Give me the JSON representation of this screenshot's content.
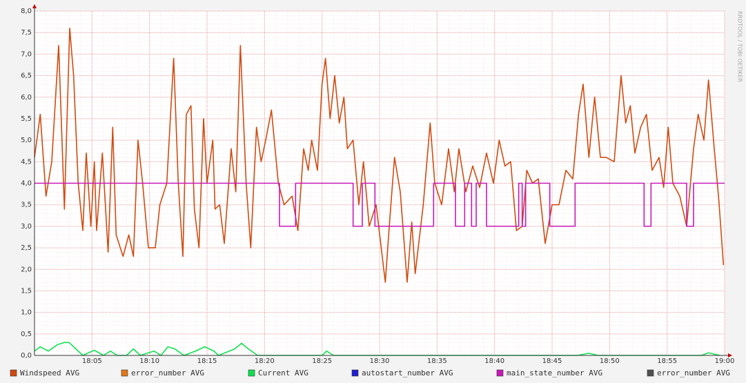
{
  "chart_data": {
    "type": "line",
    "watermark": "RRDTOOL / TOBI OETIKER",
    "xlim": [
      0,
      60
    ],
    "xticks": [
      {
        "value": 5,
        "label": "18:05"
      },
      {
        "value": 10,
        "label": "18:10"
      },
      {
        "value": 15,
        "label": "18:15"
      },
      {
        "value": 20,
        "label": "18:20"
      },
      {
        "value": 25,
        "label": "18:25"
      },
      {
        "value": 30,
        "label": "18:30"
      },
      {
        "value": 35,
        "label": "18:35"
      },
      {
        "value": 40,
        "label": "18:40"
      },
      {
        "value": 45,
        "label": "18:45"
      },
      {
        "value": 50,
        "label": "18:50"
      },
      {
        "value": 55,
        "label": "18:55"
      },
      {
        "value": 60,
        "label": "19:00"
      }
    ],
    "ylim": [
      0,
      8
    ],
    "yticks": [
      {
        "value": 0,
        "label": "0,0"
      },
      {
        "value": 0.5,
        "label": "0,5"
      },
      {
        "value": 1,
        "label": "1,0"
      },
      {
        "value": 1.5,
        "label": "1,5"
      },
      {
        "value": 2,
        "label": "2,0"
      },
      {
        "value": 2.5,
        "label": "2,5"
      },
      {
        "value": 3,
        "label": "3,0"
      },
      {
        "value": 3.5,
        "label": "3,5"
      },
      {
        "value": 4,
        "label": "4,0"
      },
      {
        "value": 4.5,
        "label": "4,5"
      },
      {
        "value": 5,
        "label": "5,0"
      },
      {
        "value": 5.5,
        "label": "5,5"
      },
      {
        "value": 6,
        "label": "6,0"
      },
      {
        "value": 6.5,
        "label": "6,5"
      },
      {
        "value": 7,
        "label": "7,0"
      },
      {
        "value": 7.5,
        "label": "7,5"
      },
      {
        "value": 8,
        "label": "8,0"
      }
    ],
    "grid": true,
    "legend": "bottom",
    "series": [
      {
        "name": "Windspeed AVG",
        "color": "#d04a10",
        "x": [
          0,
          0.5,
          1,
          1.5,
          2.1,
          2.6,
          3.06,
          3.4,
          3.8,
          4.2,
          4.5,
          4.9,
          5.2,
          5.4,
          5.9,
          6.4,
          6.8,
          7.1,
          7.7,
          8.2,
          8.6,
          9.0,
          9.4,
          9.9,
          10.5,
          10.9,
          11.5,
          12.1,
          12.5,
          12.9,
          13.2,
          13.6,
          13.9,
          14.3,
          14.7,
          15.0,
          15.5,
          15.7,
          16.1,
          16.5,
          17.1,
          17.5,
          17.9,
          18.4,
          18.8,
          19.3,
          19.7,
          20.1,
          20.6,
          21.2,
          21.7,
          22.4,
          22.9,
          23.4,
          23.8,
          24.1,
          24.6,
          25.0,
          25.3,
          25.7,
          26.1,
          26.5,
          26.9,
          27.2,
          27.7,
          28.2,
          28.6,
          29.1,
          29.7,
          30.5,
          30.9,
          31.3,
          31.8,
          32.4,
          32.8,
          33.1,
          33.8,
          34.4,
          34.8,
          35.4,
          36.0,
          36.5,
          36.9,
          37.5,
          38.1,
          38.7,
          39.3,
          39.9,
          40.4,
          40.9,
          41.4,
          41.9,
          42.4,
          42.8,
          43.3,
          43.8,
          44.4,
          45.0,
          45.6,
          46.2,
          46.8,
          47.3,
          47.7,
          48.2,
          48.7,
          49.2,
          49.7,
          50.4,
          51.0,
          51.4,
          51.8,
          52.2,
          52.7,
          53.2,
          53.7,
          54.3,
          54.7,
          55.1,
          55.5,
          56.1,
          56.7,
          57.3,
          57.7,
          58.2,
          58.6,
          59.1,
          59.5,
          59.9
        ],
        "values": [
          4.6,
          5.6,
          3.7,
          4.5,
          7.2,
          3.4,
          7.6,
          6.5,
          4.0,
          2.9,
          4.7,
          3.0,
          4.5,
          2.9,
          4.7,
          2.4,
          5.3,
          2.8,
          2.3,
          2.8,
          2.3,
          5.0,
          4.0,
          2.5,
          2.5,
          3.5,
          4.0,
          6.9,
          4.0,
          2.3,
          5.6,
          5.8,
          3.4,
          2.5,
          5.5,
          4.0,
          5.0,
          3.4,
          3.5,
          2.6,
          4.8,
          3.8,
          7.2,
          4.0,
          2.5,
          5.3,
          4.5,
          5.0,
          5.7,
          4.0,
          3.5,
          3.7,
          2.9,
          4.8,
          4.3,
          5.0,
          4.3,
          6.3,
          6.9,
          5.5,
          6.5,
          5.4,
          6.0,
          4.8,
          5.0,
          3.5,
          4.5,
          3.0,
          3.5,
          1.7,
          3.2,
          4.6,
          3.8,
          1.7,
          3.1,
          1.9,
          3.5,
          5.4,
          4.0,
          3.5,
          4.8,
          3.8,
          4.8,
          3.8,
          4.4,
          3.9,
          4.7,
          4.0,
          5.0,
          4.4,
          4.5,
          2.9,
          3.0,
          4.3,
          4.0,
          4.1,
          2.6,
          3.5,
          3.5,
          4.3,
          4.1,
          5.6,
          6.3,
          4.6,
          6.0,
          4.6,
          4.6,
          4.5,
          6.5,
          5.4,
          5.8,
          4.7,
          5.3,
          5.6,
          4.3,
          4.6,
          3.9,
          5.3,
          4.0,
          3.7,
          3.0,
          4.8,
          5.6,
          5.0,
          6.4,
          4.8,
          3.6,
          2.1
        ]
      },
      {
        "name": "error_number AVG",
        "color": "#e07818",
        "x": [],
        "values": []
      },
      {
        "name": "Current AVG",
        "color": "#10e050",
        "x": [
          0,
          0.5,
          1.2,
          2,
          2.6,
          3,
          3.6,
          4.2,
          5.2,
          6,
          6.6,
          7.2,
          8,
          8.6,
          9.2,
          10.4,
          11,
          11.6,
          12.2,
          13,
          14,
          14.8,
          15.6,
          16,
          17.4,
          18,
          18.6,
          19.4,
          25,
          25.4,
          26,
          47.2,
          48.2,
          49,
          58,
          58.6,
          59.6
        ],
        "values": [
          0.1,
          0.2,
          0.1,
          0.25,
          0.3,
          0.3,
          0.15,
          0,
          0.12,
          0,
          0.1,
          0,
          0,
          0.15,
          0,
          0.1,
          0,
          0.2,
          0.15,
          0,
          0.1,
          0.2,
          0.1,
          0,
          0.15,
          0.28,
          0.15,
          0,
          0,
          0.1,
          0,
          0,
          0.05,
          0,
          0,
          0.06,
          0
        ]
      },
      {
        "name": "autostart_number AVG",
        "color": "#2020d0",
        "x": [],
        "values": []
      },
      {
        "name": "main_state_number AVG",
        "color": "#c818b8",
        "x": [
          0,
          21.3,
          21.3,
          22.7,
          22.7,
          27.7,
          27.7,
          28.5,
          28.5,
          29.6,
          29.6,
          34.7,
          34.7,
          36.6,
          36.6,
          37.4,
          37.4,
          38.0,
          38.0,
          38.4,
          38.4,
          39.3,
          39.3,
          42.1,
          42.1,
          42.4,
          42.4,
          42.7,
          42.7,
          44.8,
          44.8,
          47.0,
          47.0,
          53.0,
          53.0,
          53.6,
          53.6,
          56.7,
          56.7,
          57.3,
          57.3,
          60
        ],
        "values": [
          4,
          4,
          3,
          3,
          4,
          4,
          3,
          3,
          4,
          4,
          3,
          3,
          4,
          4,
          3,
          3,
          4,
          4,
          3,
          3,
          4,
          4,
          3,
          3,
          4,
          4,
          3,
          3,
          4,
          4,
          3,
          3,
          4,
          4,
          3,
          3,
          4,
          4,
          3,
          3,
          4,
          4
        ]
      },
      {
        "name": "error_number AVG",
        "color": "#505050",
        "x": [],
        "values": []
      }
    ]
  }
}
